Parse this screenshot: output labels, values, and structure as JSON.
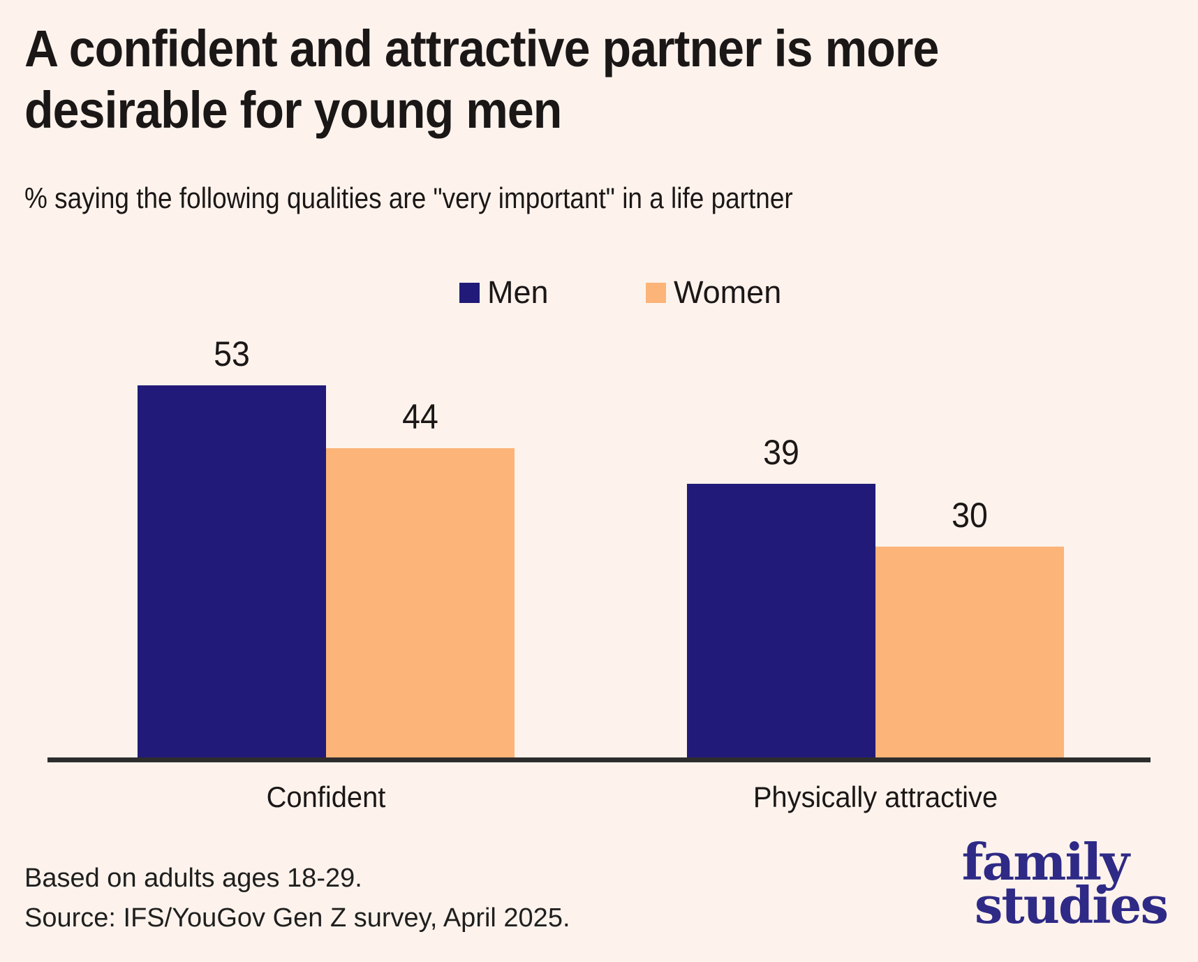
{
  "colors": {
    "background": "#fdf3ec",
    "men": "#221a78",
    "women": "#fcb478",
    "text": "#1b1717",
    "axis": "#2d2d2d",
    "logo": "#2e2a86"
  },
  "header": {
    "title_lines": [
      "A confident and attractive partner is more",
      "desirable for young men"
    ],
    "subtitle": "% saying the following qualities are \"very important\" in a life partner"
  },
  "legend": {
    "items": [
      {
        "label": "Men",
        "color": "#221a78"
      },
      {
        "label": "Women",
        "color": "#fcb478"
      }
    ]
  },
  "chart_data": {
    "type": "bar",
    "title": "A confident and attractive partner is more desirable for young men",
    "subtitle": "% saying the following qualities are \"very important\" in a life partner",
    "categories": [
      "Confident",
      "Physically attractive"
    ],
    "series": [
      {
        "name": "Men",
        "values": [
          53,
          39
        ],
        "color": "#221a78"
      },
      {
        "name": "Women",
        "values": [
          44,
          30
        ],
        "color": "#fcb478"
      }
    ],
    "value_labels": [
      [
        53,
        39
      ],
      [
        44,
        30
      ]
    ],
    "ylim": [
      0,
      60
    ],
    "grid": false,
    "legend_position": "top-center",
    "xlabel": "",
    "ylabel": ""
  },
  "footer": {
    "note": "Based on adults ages 18-29.",
    "source": "Source: IFS/YouGov Gen Z survey, April 2025."
  },
  "logo": {
    "line1": "family",
    "line2": "studies"
  }
}
